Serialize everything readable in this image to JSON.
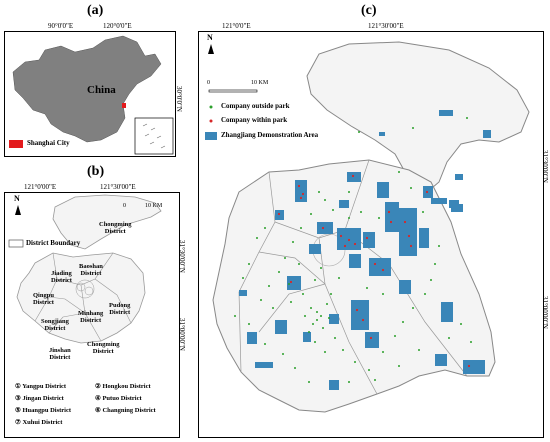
{
  "panels": {
    "a": {
      "label": "(a)",
      "top_coords": [
        "90°0'0\"E",
        "120°0'0\"E"
      ],
      "side_coord": "30°0'0\"N",
      "country_label": "China",
      "legend": {
        "label": "Shanghai City",
        "color": "#e31a1c"
      }
    },
    "b": {
      "label": "(b)",
      "top_coords": [
        "121°0'00\"E",
        "121°30'00\"E"
      ],
      "side_coords": [
        "31°30'00\"N",
        "31°00'00\"N"
      ],
      "north_label": "N",
      "scale_start": "0",
      "scale_end": "10 KM",
      "legend_label": "District Boundary",
      "districts": [
        {
          "name": "Chongming\nDistrict"
        },
        {
          "name": "Baoshan\nDistrict"
        },
        {
          "name": "Jiading\nDistrict"
        },
        {
          "name": "Qingpu\nDistrict"
        },
        {
          "name": "Pudong\nDistrict"
        },
        {
          "name": "Minhang\nDistrict"
        },
        {
          "name": "Songjiang\nDistrict"
        },
        {
          "name": "Jinshan\nDistrict"
        },
        {
          "name": "Chongming\nDistrict"
        }
      ],
      "key": [
        "① Yangpu District",
        "② Hongkou District",
        "③ Jingan District",
        "④ Putuo District",
        "⑤ Huangpu District",
        "⑥ Changning District",
        "⑦ Xuhui District"
      ]
    },
    "c": {
      "label": "(c)",
      "top_coords": [
        "121°0'0\"E",
        "121°30'00\"E"
      ],
      "side_coords": [
        "31°30'00\"N",
        "31°00'00\"N"
      ],
      "north_label": "N",
      "scale_start": "0",
      "scale_end": "10 KM",
      "legend": [
        {
          "label": "Company outside park",
          "color": "#2ca02c",
          "symbol": "dot"
        },
        {
          "label": "Company within park",
          "color": "#d62728",
          "symbol": "dot"
        },
        {
          "label": "Zhangjiang Demonstration Area",
          "color": "#3a86b8",
          "symbol": "box"
        }
      ]
    }
  }
}
